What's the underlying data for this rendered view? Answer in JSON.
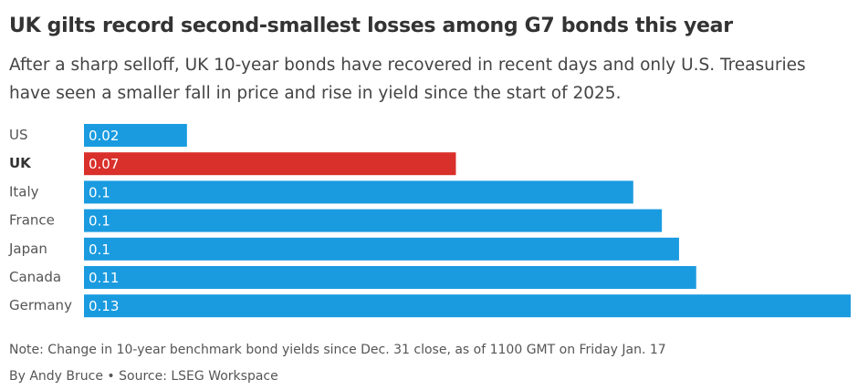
{
  "chart_data": {
    "type": "barh",
    "title": "UK gilts record second-smallest losses among G7 bonds this year",
    "subtitle": "After a sharp selloff, UK 10-year bonds have recovered in recent days and only U.S. Treasuries have seen a smaller fall in price and rise in yield since the start of 2025.",
    "categories": [
      "US",
      "UK",
      "Italy",
      "France",
      "Japan",
      "Canada",
      "Germany"
    ],
    "values": [
      0.018,
      0.065,
      0.096,
      0.101,
      0.104,
      0.107,
      0.134
    ],
    "value_labels": [
      "0.02",
      "0.07",
      "0.1",
      "0.1",
      "0.1",
      "0.11",
      "0.13"
    ],
    "colors": [
      "#1a9be0",
      "#d9302b",
      "#1a9be0",
      "#1a9be0",
      "#1a9be0",
      "#1a9be0",
      "#1a9be0"
    ],
    "label_bold": [
      false,
      true,
      false,
      false,
      false,
      false,
      false
    ],
    "xlim": [
      0,
      0.134
    ],
    "note": "Note: Change in 10-year benchmark bond yields since Dec. 31 close, as of 1100 GMT on Friday Jan. 17",
    "source": "By Andy Bruce • Source: LSEG Workspace"
  }
}
